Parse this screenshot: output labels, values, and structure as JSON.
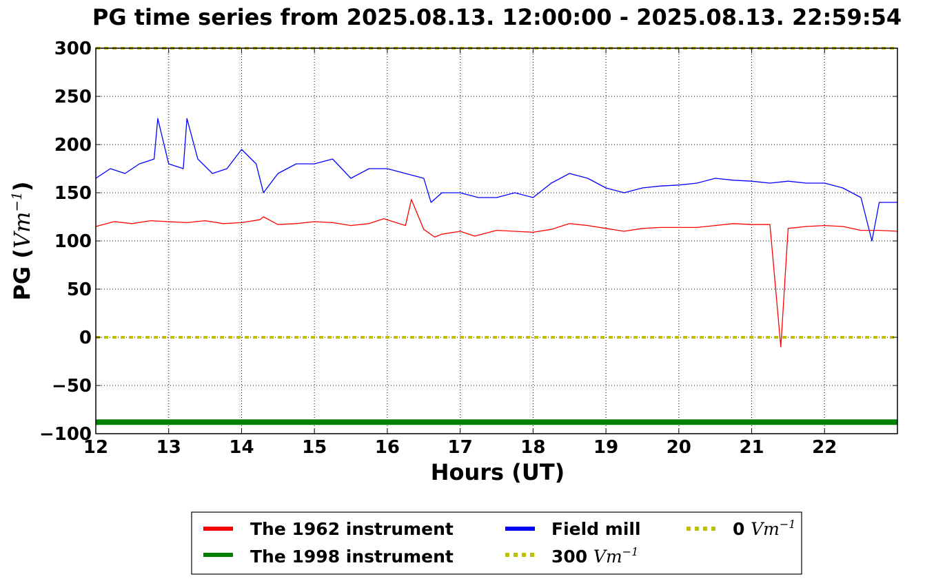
{
  "chart_data": {
    "type": "line",
    "title": "PG time series from 2025.08.13. 12:00:00 - 2025.08.13. 22:59:54",
    "xlabel": "Hours (UT)",
    "ylabel_text": "PG (",
    "ylabel_unit": "Vm",
    "ylabel_exp": "−1",
    "ylabel_close": ")",
    "xlim": [
      12,
      23
    ],
    "ylim": [
      -100,
      300
    ],
    "xticks": [
      12,
      13,
      14,
      15,
      16,
      17,
      18,
      19,
      20,
      21,
      22
    ],
    "xtick_labels": [
      "12",
      "13",
      "14",
      "15",
      "16",
      "17",
      "18",
      "19",
      "20",
      "21",
      "22"
    ],
    "yticks": [
      -100,
      -50,
      0,
      50,
      100,
      150,
      200,
      250,
      300
    ],
    "ytick_labels": [
      "−100",
      "−50",
      "0",
      "50",
      "100",
      "150",
      "200",
      "250",
      "300"
    ],
    "grid": true,
    "legend_position": "bottom-center, below axes",
    "series": [
      {
        "name": "The 1962 instrument",
        "color": "#ff0000",
        "style": "solid",
        "x": [
          12.0,
          12.25,
          12.5,
          12.75,
          13.0,
          13.25,
          13.5,
          13.75,
          14.0,
          14.25,
          14.3,
          14.5,
          14.75,
          15.0,
          15.25,
          15.5,
          15.75,
          15.95,
          16.25,
          16.33,
          16.5,
          16.65,
          16.75,
          17.0,
          17.2,
          17.5,
          17.75,
          18.0,
          18.25,
          18.5,
          18.75,
          19.0,
          19.25,
          19.5,
          19.75,
          20.0,
          20.25,
          20.5,
          20.75,
          21.0,
          21.25,
          21.4,
          21.5,
          21.75,
          22.0,
          22.25,
          22.5,
          22.75,
          23.0
        ],
        "y": [
          115,
          120,
          118,
          121,
          120,
          119,
          121,
          118,
          119,
          122,
          125,
          117,
          118,
          120,
          119,
          116,
          118,
          123,
          116,
          143,
          112,
          104,
          107,
          110,
          105,
          111,
          110,
          109,
          112,
          118,
          116,
          113,
          110,
          113,
          114,
          114,
          114,
          116,
          118,
          117,
          117,
          -10,
          113,
          115,
          116,
          115,
          111,
          111,
          110
        ]
      },
      {
        "name": "The 1998 instrument",
        "color": "#008000",
        "style": "solid-thick",
        "x": [
          12,
          23
        ],
        "y": [
          -88,
          -88
        ]
      },
      {
        "name": "Field mill",
        "color": "#0000ff",
        "style": "solid",
        "x": [
          12.0,
          12.2,
          12.4,
          12.6,
          12.8,
          12.85,
          13.0,
          13.2,
          13.25,
          13.4,
          13.6,
          13.8,
          14.0,
          14.2,
          14.3,
          14.5,
          14.75,
          15.0,
          15.25,
          15.5,
          15.75,
          16.0,
          16.25,
          16.5,
          16.6,
          16.75,
          17.0,
          17.25,
          17.5,
          17.75,
          18.0,
          18.25,
          18.5,
          18.75,
          19.0,
          19.25,
          19.5,
          19.75,
          20.0,
          20.25,
          20.5,
          20.75,
          21.0,
          21.25,
          21.5,
          21.75,
          22.0,
          22.25,
          22.5,
          22.65,
          22.75,
          23.0
        ],
        "y": [
          165,
          175,
          170,
          180,
          185,
          227,
          180,
          175,
          227,
          185,
          170,
          175,
          195,
          180,
          150,
          170,
          180,
          180,
          185,
          165,
          175,
          175,
          170,
          165,
          140,
          150,
          150,
          145,
          145,
          150,
          145,
          160,
          170,
          165,
          155,
          150,
          155,
          157,
          158,
          160,
          165,
          163,
          162,
          160,
          162,
          160,
          160,
          155,
          145,
          100,
          140,
          140
        ]
      },
      {
        "name": "300 Vm−1",
        "color": "#bfbf00",
        "style": "dotted",
        "x": [
          12,
          23
        ],
        "y": [
          300,
          300
        ]
      },
      {
        "name": "0 Vm−1",
        "color": "#bfbf00",
        "style": "dotted",
        "x": [
          12,
          23
        ],
        "y": [
          0,
          0
        ]
      }
    ],
    "legend": [
      {
        "label": "The 1962 instrument",
        "color": "#ff0000",
        "style": "solid"
      },
      {
        "label": "The 1998 instrument",
        "color": "#008000",
        "style": "solid"
      },
      {
        "label": "Field mill",
        "color": "#0000ff",
        "style": "solid"
      },
      {
        "label_text": "300 ",
        "label_unit": "Vm",
        "label_exp": "−1",
        "color": "#bfbf00",
        "style": "dotted"
      },
      {
        "label_text": "0 ",
        "label_unit": "Vm",
        "label_exp": "−1",
        "color": "#bfbf00",
        "style": "dotted"
      }
    ]
  }
}
